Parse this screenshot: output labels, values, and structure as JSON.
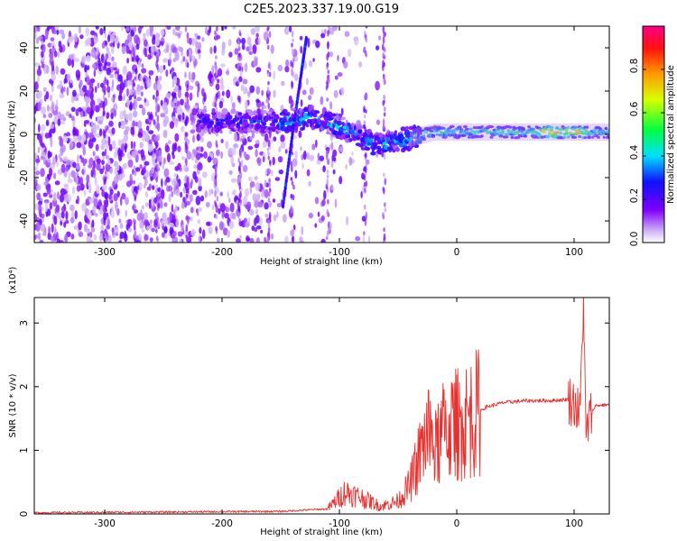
{
  "chart_data": [
    {
      "type": "heatmap",
      "title": "C2E5.2023.337.19.00.G19",
      "xlabel": "Height of straight line (km)",
      "ylabel": "Frequency (Hz)",
      "xlim": [
        -360,
        130
      ],
      "ylim": [
        -50,
        50
      ],
      "x_ticks": [
        -300,
        -200,
        -100,
        0,
        100
      ],
      "x_tick_labels": [
        "-300",
        "-200",
        "-100",
        "0",
        "100"
      ],
      "y_ticks": [
        -40,
        -20,
        0,
        20,
        40
      ],
      "y_tick_labels": [
        "-40",
        "-20",
        "0",
        "20",
        "40"
      ],
      "colorbar": {
        "label": "Normalized spectral amplitude",
        "range": [
          0.0,
          1.0
        ],
        "ticks": [
          0.0,
          0.2,
          0.4,
          0.6,
          0.8
        ],
        "tick_labels": [
          "0.0",
          "0.2",
          "0.4",
          "0.6",
          "0.8"
        ],
        "colormap": "rainbow (white to violet, blue, cyan, green, yellow, orange, red, magenta)"
      },
      "features": {
        "diffuse_noise_region_x": [
          -360,
          -90
        ],
        "diagonal_streak_points": [
          [
            -148,
            -33
          ],
          [
            -140,
            0
          ],
          [
            -132,
            30
          ],
          [
            -128,
            45
          ]
        ],
        "band_centerline": [
          [
            -220,
            6
          ],
          [
            -150,
            6
          ],
          [
            -120,
            8
          ],
          [
            -90,
            1
          ],
          [
            -70,
            -5
          ],
          [
            -50,
            -3
          ],
          [
            -20,
            1
          ],
          [
            0,
            1
          ],
          [
            60,
            1
          ],
          [
            130,
            1
          ]
        ],
        "band_peak_amplitude_x": [
          70,
          110
        ]
      }
    },
    {
      "type": "line",
      "xlabel": "Height of straight line (km)",
      "ylabel": "SNR (10 * v/v)",
      "y_scale_label": "(x10⁴)",
      "xlim": [
        -360,
        130
      ],
      "ylim": [
        0,
        3.4
      ],
      "x_ticks": [
        -300,
        -200,
        -100,
        0,
        100
      ],
      "x_tick_labels": [
        "-300",
        "-200",
        "-100",
        "0",
        "100"
      ],
      "y_ticks": [
        0,
        1,
        2,
        3
      ],
      "y_tick_labels": [
        "0",
        "1",
        "2",
        "3"
      ],
      "color": "#e8312f",
      "envelope_points": [
        [
          -360,
          0.02
        ],
        [
          -250,
          0.03
        ],
        [
          -150,
          0.04
        ],
        [
          -110,
          0.08
        ],
        [
          -95,
          0.35
        ],
        [
          -80,
          0.25
        ],
        [
          -65,
          0.12
        ],
        [
          -50,
          0.2
        ],
        [
          -40,
          0.45
        ],
        [
          -32,
          0.9
        ],
        [
          -25,
          1.3
        ],
        [
          -18,
          1.0
        ],
        [
          -10,
          1.35
        ],
        [
          0,
          1.4
        ],
        [
          10,
          1.5
        ],
        [
          25,
          1.68
        ],
        [
          40,
          1.75
        ],
        [
          60,
          1.78
        ],
        [
          80,
          1.78
        ],
        [
          95,
          1.8
        ],
        [
          100,
          1.75
        ],
        [
          105,
          1.55
        ],
        [
          108,
          3.4
        ],
        [
          110,
          1.2
        ],
        [
          113,
          1.5
        ],
        [
          118,
          1.7
        ],
        [
          130,
          1.72
        ]
      ]
    }
  ]
}
